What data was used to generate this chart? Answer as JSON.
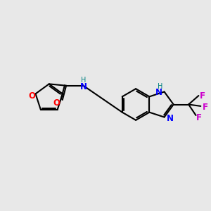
{
  "bg_color": "#e8e8e8",
  "bond_color": "#000000",
  "bond_lw": 1.5,
  "atom_colors": {
    "O": "#ff0000",
    "N": "#0000ff",
    "H": "#008080",
    "F": "#cc00cc",
    "C": "#000000"
  },
  "font_size": 8.5,
  "fig_bg": "#e8e8e8"
}
